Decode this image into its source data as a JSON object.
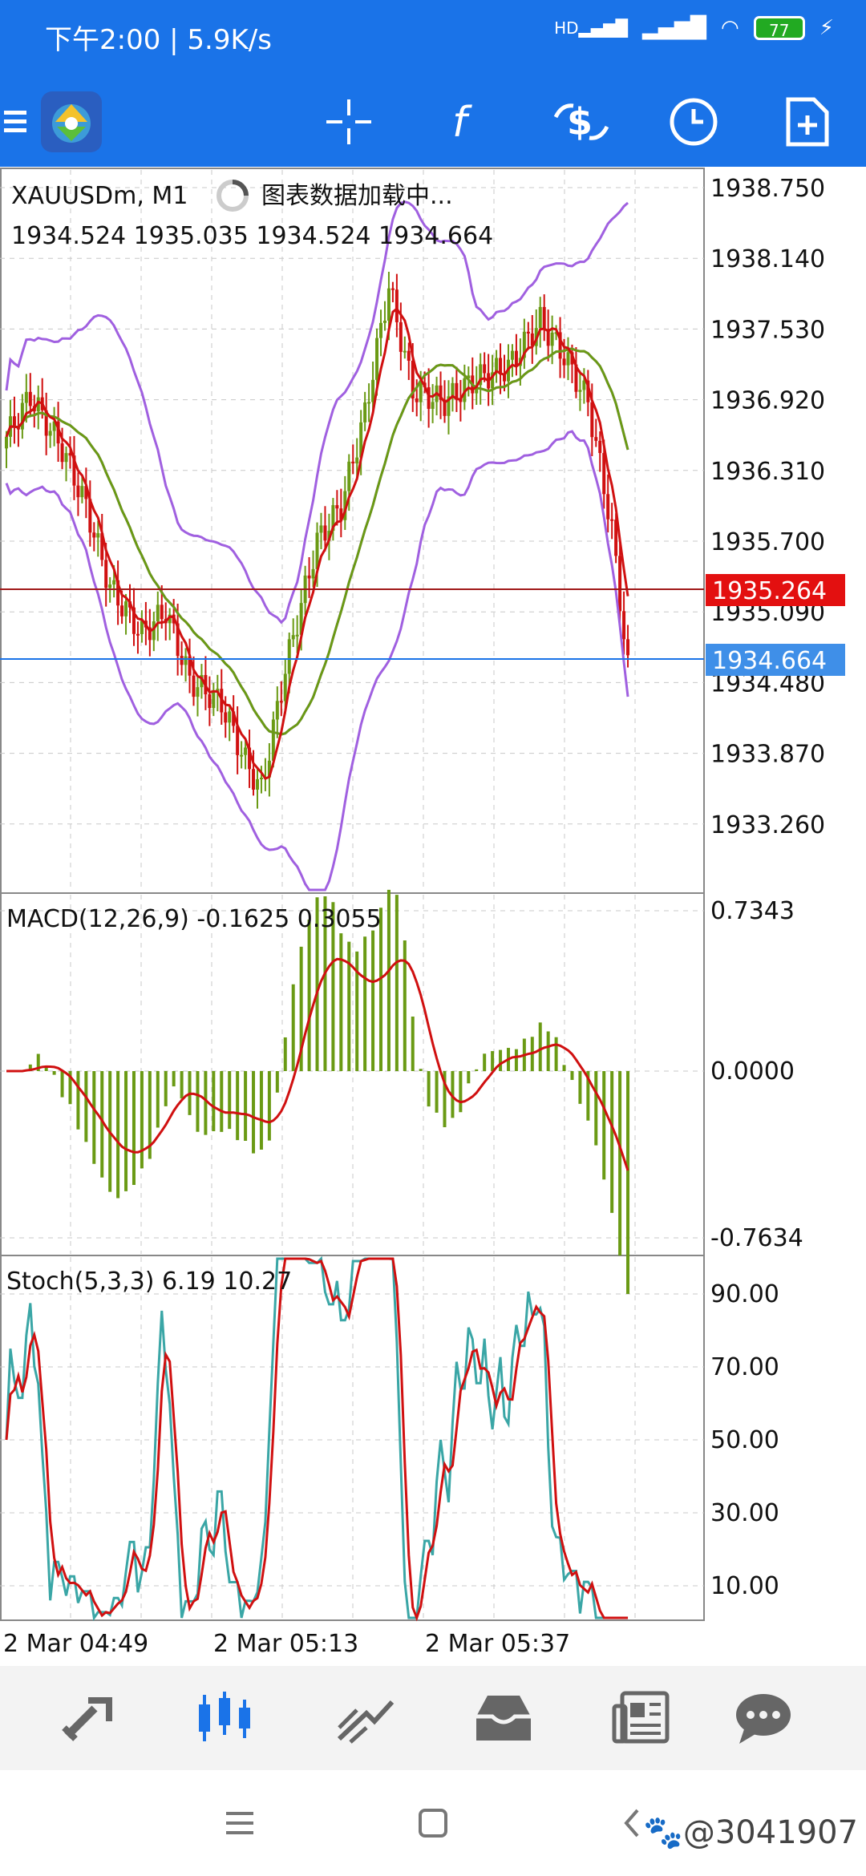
{
  "status_bar": {
    "time": "下午2:00 | 5.9K/s",
    "network": "HD",
    "battery": "77"
  },
  "toolbar": {
    "items": [
      "app-logo",
      "crosshair",
      "indicators",
      "trade",
      "timeframe",
      "new-order"
    ]
  },
  "chart": {
    "symbol": "XAUUSDm, M1",
    "loading_text": "图表数据加载中...",
    "ohlc": "1934.524 1935.035 1934.524 1934.664",
    "price_ticks": [
      "1938.750",
      "1938.140",
      "1937.530",
      "1936.920",
      "1936.310",
      "1935.700",
      "1935.090",
      "1934.480",
      "1933.870",
      "1933.260"
    ],
    "price_label_red": "1935.264",
    "price_label_blue": "1934.664",
    "macd_label": "MACD(12,26,9) -0.1625 0.3055",
    "macd_ticks": [
      "0.7343",
      "0.0000",
      "-0.7634"
    ],
    "stoch_label": "Stoch(5,3,3) 6.19 10.27",
    "stoch_ticks": [
      "90.00",
      "70.00",
      "50.00",
      "30.00",
      "10.00"
    ],
    "time_ticks": [
      "2 Mar 04:49",
      "2 Mar 05:13",
      "2 Mar 05:37"
    ],
    "colors": {
      "bull": "#6a9a14",
      "bear": "#d01010",
      "boll": "#a060e0",
      "ma_fast": "#d01010",
      "ma_slow": "#6a9a14",
      "stoch_main": "#3aa6a6",
      "stoch_signal": "#d01010",
      "ask_line": "#a01818",
      "bid_line": "#1a73e8"
    }
  },
  "bottom_nav": [
    "quotes",
    "chart",
    "trade",
    "history",
    "news",
    "messages"
  ],
  "watermark": "@3041907"
}
